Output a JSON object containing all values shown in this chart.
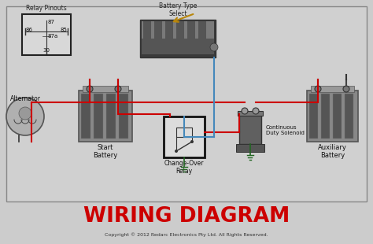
{
  "bg_color": "#cccccc",
  "diagram_bg": "#d0d0d0",
  "border_color": "#888888",
  "red_wire": "#cc0000",
  "blue_wire": "#4488bb",
  "green_wire": "#226622",
  "brown_wire": "#b8860b",
  "title_color": "#cc0000",
  "title_text": "WIRING DIAGRAM",
  "copyright_text": "Copyright © 2012 Redarc Electronics Pty Ltd. All Rights Reserved.",
  "label_alternator": "Alternator",
  "label_start_battery": "Start\nBattery",
  "label_aux_battery": "Auxiliary\nBattery",
  "label_solenoid": "Continuous\nDuty Solenoid",
  "label_relay": "Change-Over\nRelay",
  "label_battery_select": "Battery Type\nSelect",
  "label_relay_pinouts": "Relay Pinouts",
  "label_86": "86",
  "label_87": "87",
  "label_87a": "87a",
  "label_85": "85",
  "label_30": "30"
}
